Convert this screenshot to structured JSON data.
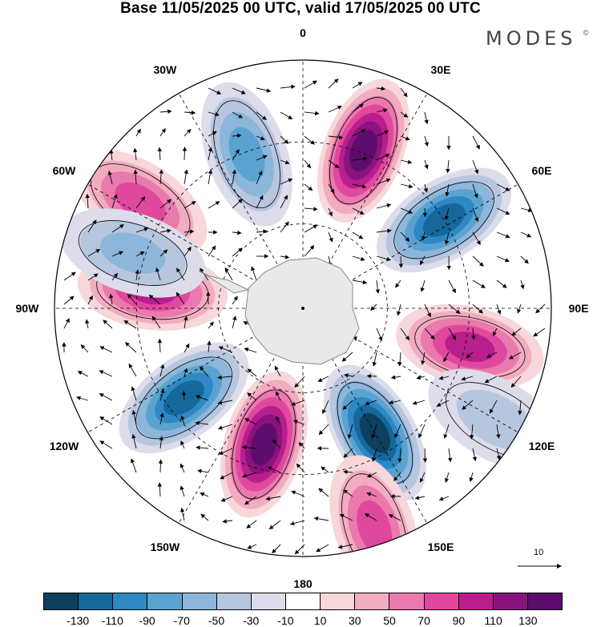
{
  "title": "Base 11/05/2025 00 UTC, valid 17/05/2025 00 UTC",
  "brand": "MODES",
  "brand_mark": "©",
  "longitude_labels": [
    {
      "text": "0",
      "angle": 0
    },
    {
      "text": "30E",
      "angle": 30
    },
    {
      "text": "60E",
      "angle": 60
    },
    {
      "text": "90E",
      "angle": 90
    },
    {
      "text": "120E",
      "angle": 120
    },
    {
      "text": "150E",
      "angle": 150
    },
    {
      "text": "180",
      "angle": 180
    },
    {
      "text": "150W",
      "angle": 210
    },
    {
      "text": "120W",
      "angle": 240
    },
    {
      "text": "90W",
      "angle": 270
    },
    {
      "text": "60W",
      "angle": 300
    },
    {
      "text": "30W",
      "angle": 330
    }
  ],
  "reference_vector": {
    "label": "10"
  },
  "colorbar": {
    "colors": [
      "#0d3f5e",
      "#16679a",
      "#2d88c4",
      "#5aa3d0",
      "#8cb6da",
      "#b7c6df",
      "#dcdcea",
      "#ffffff",
      "#f7d7da",
      "#f2acc0",
      "#ea79ad",
      "#e0489e",
      "#b81e8c",
      "#8a137e",
      "#5e0d6f"
    ],
    "ticks": [
      "-130",
      "-110",
      "-90",
      "-70",
      "-50",
      "-30",
      "-10",
      "10",
      "30",
      "50",
      "70",
      "90",
      "110",
      "130"
    ]
  },
  "anomaly_centers": [
    {
      "angle": -20,
      "dist": 0.66,
      "value": -75
    },
    {
      "angle": 21,
      "dist": 0.68,
      "value": 125
    },
    {
      "angle": 58,
      "dist": 0.67,
      "value": -105
    },
    {
      "angle": 103,
      "dist": 0.69,
      "value": 80
    },
    {
      "angle": 150,
      "dist": 0.58,
      "value": -125
    },
    {
      "angle": 196,
      "dist": 0.57,
      "value": 125
    },
    {
      "angle": 233,
      "dist": 0.6,
      "value": -105
    },
    {
      "angle": 277,
      "dist": 0.61,
      "value": 95
    },
    {
      "angle": 303,
      "dist": 0.78,
      "value": 60
    },
    {
      "angle": 288,
      "dist": 0.72,
      "value": -40
    },
    {
      "angle": 162,
      "dist": 0.93,
      "value": 60
    },
    {
      "angle": 120,
      "dist": 0.9,
      "value": -30
    }
  ]
}
